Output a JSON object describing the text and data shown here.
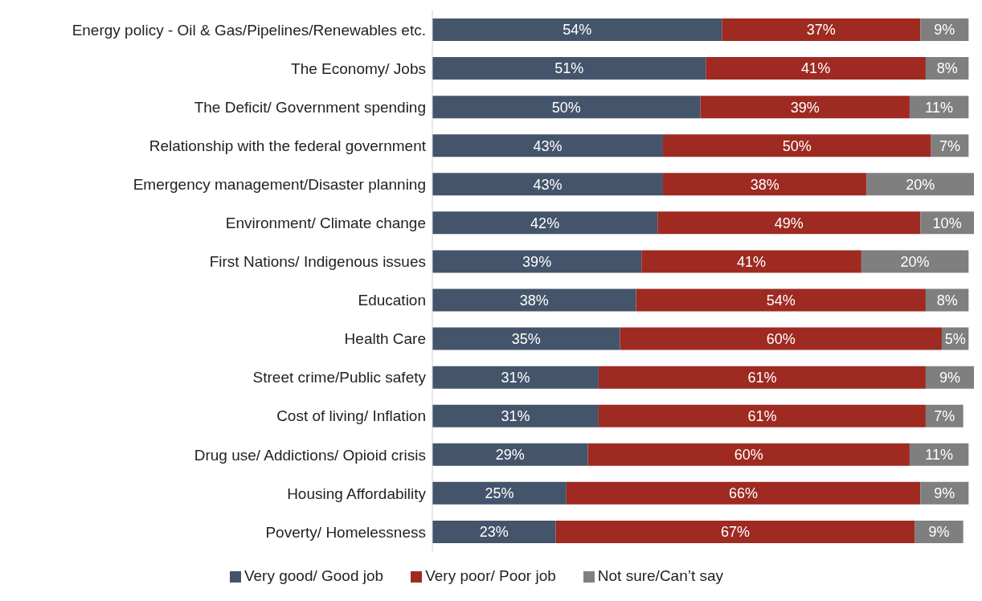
{
  "chart_data": {
    "type": "bar",
    "orientation": "horizontal",
    "stacked": true,
    "legend": "bottom",
    "categories": [
      "Energy policy - Oil & Gas/Pipelines/Renewables etc.",
      "The Economy/ Jobs",
      "The Deficit/ Government spending",
      "Relationship with the federal government",
      "Emergency management/Disaster planning",
      "Environment/ Climate change",
      "First Nations/ Indigenous issues",
      "Education",
      "Health Care",
      "Street crime/Public safety",
      "Cost of living/ Inflation",
      "Drug use/ Addictions/ Opioid crisis",
      "Housing Affordability",
      "Poverty/ Homelessness"
    ],
    "series": [
      {
        "name": "Very good/ Good job",
        "color": "#44546a",
        "values": [
          54,
          51,
          50,
          43,
          43,
          42,
          39,
          38,
          35,
          31,
          31,
          29,
          25,
          23
        ],
        "value_labels": [
          "54%",
          "51%",
          "50%",
          "43%",
          "43%",
          "42%",
          "39%",
          "38%",
          "35%",
          "31%",
          "31%",
          "29%",
          "25%",
          "23%"
        ]
      },
      {
        "name": "Very poor/ Poor job",
        "color": "#9e2a22",
        "values": [
          37,
          41,
          39,
          50,
          38,
          49,
          41,
          54,
          60,
          61,
          61,
          60,
          66,
          67
        ],
        "value_labels": [
          "37%",
          "41%",
          "39%",
          "50%",
          "38%",
          "49%",
          "41%",
          "54%",
          "60%",
          "61%",
          "61%",
          "60%",
          "66%",
          "67%"
        ]
      },
      {
        "name": "Not sure/Can’t say",
        "color": "#7f7f7f",
        "values": [
          9,
          8,
          11,
          7,
          20,
          10,
          20,
          8,
          5,
          9,
          7,
          11,
          9,
          9
        ],
        "value_labels": [
          "9%",
          "8%",
          "11%",
          "7%",
          "20%",
          "10%",
          "20%",
          "8%",
          "5%",
          "9%",
          "7%",
          "11%",
          "9%",
          "9%"
        ]
      }
    ]
  }
}
